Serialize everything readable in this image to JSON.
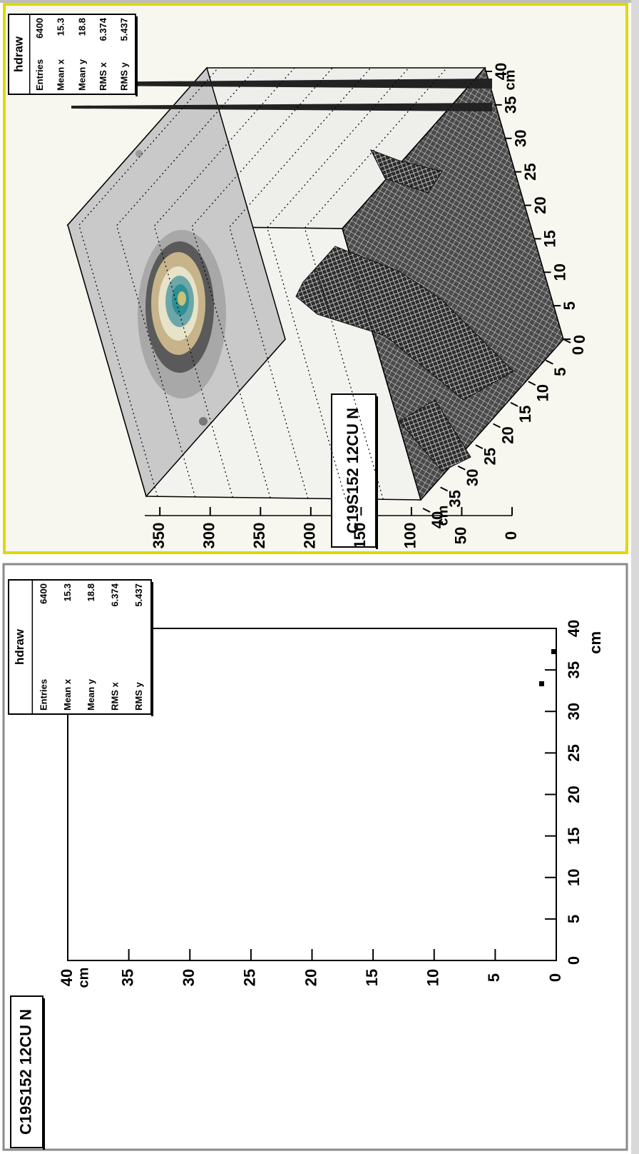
{
  "chart_data": [
    {
      "type": "scatter",
      "title": "C19S152 12CU N",
      "stats": {
        "title": "hdraw",
        "rows": [
          {
            "label": "Entries",
            "value": 6400
          },
          {
            "label": "Mean x",
            "value": 15.3
          },
          {
            "label": "Mean y",
            "value": 18.8
          },
          {
            "label": "RMS x",
            "value": 6.374
          },
          {
            "label": "RMS y",
            "value": 5.437
          }
        ]
      },
      "xlabel": "cm",
      "ylabel": "cm",
      "xlim": [
        0,
        40
      ],
      "ylim": [
        0,
        40
      ],
      "xticks": [
        0,
        5,
        10,
        15,
        20,
        25,
        30,
        35,
        40
      ],
      "yticks": [
        0,
        5,
        10,
        15,
        20,
        25,
        30,
        35,
        40
      ]
    },
    {
      "type": "lego",
      "title": "C19S152 12CU N",
      "stats": {
        "title": "hdraw",
        "rows": [
          {
            "label": "Entries",
            "value": 6400
          },
          {
            "label": "Mean x",
            "value": 15.3
          },
          {
            "label": "Mean y",
            "value": 18.8
          },
          {
            "label": "RMS x",
            "value": 6.374
          },
          {
            "label": "RMS y",
            "value": 5.437
          }
        ]
      },
      "xlabel": "cm",
      "ylabel": "cm",
      "xlim": [
        0,
        40
      ],
      "ylim": [
        0,
        40
      ],
      "zlim": [
        0,
        365
      ],
      "xticks": [
        0,
        5,
        10,
        15,
        20,
        25,
        30,
        35,
        40
      ],
      "yticks": [
        0,
        5,
        10,
        15,
        20,
        25,
        30,
        35,
        40
      ],
      "zticks": [
        0,
        50,
        100,
        150,
        200,
        250,
        300,
        350
      ]
    }
  ]
}
